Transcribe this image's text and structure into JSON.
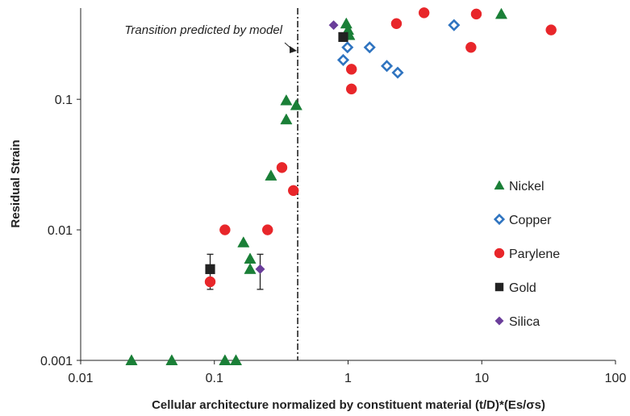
{
  "chart_data": {
    "type": "scatter",
    "title": "",
    "xlabel": "Cellular architecture normalized by constituent material (t/D)*(Es/σs)",
    "ylabel": "Residual Strain",
    "xscale": "log",
    "yscale": "log",
    "xlim": [
      0.01,
      100
    ],
    "ylim": [
      0.001,
      0.5
    ],
    "xticks": [
      {
        "value": 0.01,
        "label": "0.01"
      },
      {
        "value": 0.1,
        "label": "0.1"
      },
      {
        "value": 1,
        "label": "1"
      },
      {
        "value": 10,
        "label": "10"
      },
      {
        "value": 100,
        "label": "100"
      }
    ],
    "yticks": [
      {
        "value": 0.001,
        "label": "0.001"
      },
      {
        "value": 0.01,
        "label": "0.01"
      },
      {
        "value": 0.1,
        "label": "0.1"
      }
    ],
    "grid": false,
    "legend_position": "right",
    "transition": {
      "x": 0.42,
      "label": "Transition predicted by model"
    },
    "series": [
      {
        "name": "Nickel",
        "marker": "triangle",
        "color": "#1a7f37",
        "filled": true,
        "points": [
          {
            "x": 0.024,
            "y": 0.001
          },
          {
            "x": 0.048,
            "y": 0.001
          },
          {
            "x": 0.12,
            "y": 0.001
          },
          {
            "x": 0.145,
            "y": 0.001
          },
          {
            "x": 0.165,
            "y": 0.008
          },
          {
            "x": 0.185,
            "y": 0.006
          },
          {
            "x": 0.185,
            "y": 0.005
          },
          {
            "x": 0.265,
            "y": 0.026
          },
          {
            "x": 0.345,
            "y": 0.098
          },
          {
            "x": 0.345,
            "y": 0.07
          },
          {
            "x": 0.41,
            "y": 0.09
          },
          {
            "x": 0.97,
            "y": 0.38
          },
          {
            "x": 1.0,
            "y": 0.34
          },
          {
            "x": 1.02,
            "y": 0.31
          },
          {
            "x": 14,
            "y": 0.45
          }
        ]
      },
      {
        "name": "Copper",
        "marker": "diamond",
        "color": "#2f74c0",
        "filled": false,
        "points": [
          {
            "x": 0.92,
            "y": 0.2
          },
          {
            "x": 0.99,
            "y": 0.25
          },
          {
            "x": 1.45,
            "y": 0.25
          },
          {
            "x": 1.95,
            "y": 0.18
          },
          {
            "x": 2.35,
            "y": 0.16
          },
          {
            "x": 6.2,
            "y": 0.37
          }
        ]
      },
      {
        "name": "Parylene",
        "marker": "circle",
        "color": "#e8262a",
        "filled": true,
        "points": [
          {
            "x": 0.093,
            "y": 0.004
          },
          {
            "x": 0.12,
            "y": 0.01
          },
          {
            "x": 0.25,
            "y": 0.01
          },
          {
            "x": 0.32,
            "y": 0.03
          },
          {
            "x": 0.39,
            "y": 0.02
          },
          {
            "x": 1.06,
            "y": 0.17
          },
          {
            "x": 1.06,
            "y": 0.12
          },
          {
            "x": 2.3,
            "y": 0.38
          },
          {
            "x": 3.7,
            "y": 0.46
          },
          {
            "x": 8.3,
            "y": 0.25
          },
          {
            "x": 9.1,
            "y": 0.45
          },
          {
            "x": 33,
            "y": 0.34
          }
        ]
      },
      {
        "name": "Gold",
        "marker": "square",
        "color": "#222222",
        "filled": true,
        "points": [
          {
            "x": 0.093,
            "y": 0.005,
            "err_low": 0.0035,
            "err_high": 0.0065
          },
          {
            "x": 0.92,
            "y": 0.3
          }
        ]
      },
      {
        "name": "Silica",
        "marker": "diamond",
        "color": "#6a3d9a",
        "filled": true,
        "points": [
          {
            "x": 0.22,
            "y": 0.005,
            "err_low": 0.0035,
            "err_high": 0.0065
          },
          {
            "x": 0.78,
            "y": 0.37
          }
        ]
      }
    ]
  }
}
